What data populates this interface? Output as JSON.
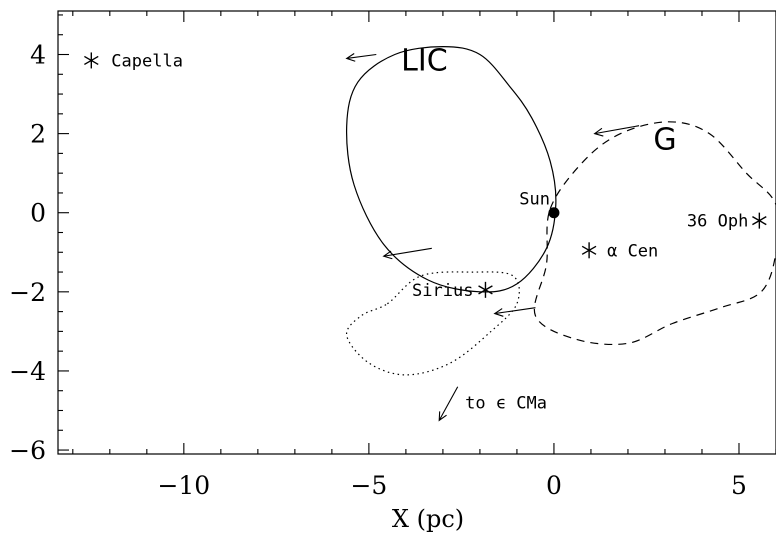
{
  "axes": {
    "xlabel": "X (pc)",
    "ylabel": "",
    "xlim": [
      -13.4,
      6.0
    ],
    "ylim": [
      -6.1,
      5.1
    ],
    "xticks": [
      {
        "value": -10,
        "label": "−10"
      },
      {
        "value": -5,
        "label": "−5"
      },
      {
        "value": 0,
        "label": "0"
      },
      {
        "value": 5,
        "label": "5"
      }
    ],
    "yticks": [
      {
        "value": 4,
        "label": "4"
      },
      {
        "value": 2,
        "label": "2"
      },
      {
        "value": 0,
        "label": "0"
      },
      {
        "value": -2,
        "label": "−2"
      },
      {
        "value": -4,
        "label": "−4"
      },
      {
        "value": -6,
        "label": "−6"
      }
    ]
  },
  "clouds": [
    {
      "name": "LIC",
      "style": "solid",
      "label_at": [
        -3.5,
        3.6
      ],
      "outline": [
        [
          -2.0,
          4.0
        ],
        [
          -1.2,
          3.2
        ],
        [
          -0.6,
          2.4
        ],
        [
          -0.1,
          1.3
        ],
        [
          0.05,
          0.2
        ],
        [
          -0.2,
          -0.9
        ],
        [
          -1.0,
          -1.8
        ],
        [
          -2.0,
          -2.0
        ],
        [
          -3.4,
          -1.7
        ],
        [
          -4.6,
          -0.8
        ],
        [
          -5.4,
          0.7
        ],
        [
          -5.6,
          2.2
        ],
        [
          -5.3,
          3.3
        ],
        [
          -4.3,
          4.0
        ],
        [
          -3.0,
          4.2
        ]
      ],
      "motion_arrows": [
        [
          [
            -4.8,
            4.0
          ],
          [
            -5.6,
            3.9
          ]
        ],
        [
          [
            -3.3,
            -0.9
          ],
          [
            -4.6,
            -1.1
          ]
        ]
      ]
    },
    {
      "name": "G",
      "style": "dashed",
      "label_at": [
        3.0,
        1.6
      ],
      "outline": [
        [
          -0.1,
          0.1
        ],
        [
          0.8,
          1.3
        ],
        [
          1.8,
          2.0
        ],
        [
          3.1,
          2.3
        ],
        [
          4.2,
          2.0
        ],
        [
          5.2,
          1.0
        ],
        [
          6.0,
          0.2
        ],
        [
          6.0,
          -1.0
        ],
        [
          5.6,
          -2.0
        ],
        [
          4.5,
          -2.4
        ],
        [
          3.2,
          -2.8
        ],
        [
          2.0,
          -3.3
        ],
        [
          0.6,
          -3.2
        ],
        [
          -0.5,
          -2.6
        ],
        [
          -0.2,
          -1.3
        ]
      ],
      "motion_arrows": [
        [
          [
            2.3,
            2.2
          ],
          [
            1.1,
            2.0
          ]
        ],
        [
          [
            -0.5,
            -2.4
          ],
          [
            -1.6,
            -2.55
          ]
        ]
      ]
    },
    {
      "name": "",
      "style": "dotted",
      "label_at": null,
      "outline": [
        [
          -4.5,
          -2.3
        ],
        [
          -3.6,
          -1.6
        ],
        [
          -2.2,
          -1.5
        ],
        [
          -1.1,
          -1.6
        ],
        [
          -1.0,
          -2.3
        ],
        [
          -1.7,
          -3.0
        ],
        [
          -2.8,
          -3.8
        ],
        [
          -4.0,
          -4.1
        ],
        [
          -5.0,
          -3.8
        ],
        [
          -5.6,
          -3.1
        ],
        [
          -5.2,
          -2.6
        ]
      ],
      "motion_arrows": []
    }
  ],
  "stars": [
    {
      "name": "Capella",
      "x": -12.5,
      "y": 3.85,
      "label": "Capella",
      "anchor": "start",
      "dx": 20,
      "dy": 6
    },
    {
      "name": "Sirius",
      "x": -1.85,
      "y": -1.95,
      "label": "Sirius",
      "anchor": "end",
      "dx": -12,
      "dy": 6
    },
    {
      "name": "alpha-cen",
      "x": 0.95,
      "y": -0.95,
      "label": "α Cen",
      "anchor": "start",
      "dx": 18,
      "dy": 6
    },
    {
      "name": "36-oph",
      "x": 5.55,
      "y": -0.2,
      "label": "36 Oph",
      "anchor": "end",
      "dx": -11,
      "dy": 6
    }
  ],
  "sun": {
    "x": 0.0,
    "y": 0.0,
    "label": "Sun"
  },
  "annotations": [
    {
      "name": "to-epsilon-cma",
      "text": "to ϵ CMa",
      "x": -2.4,
      "y": -4.95,
      "arrow_from": [
        -2.6,
        -4.4
      ],
      "arrow_to": [
        -3.1,
        -5.25
      ]
    }
  ]
}
